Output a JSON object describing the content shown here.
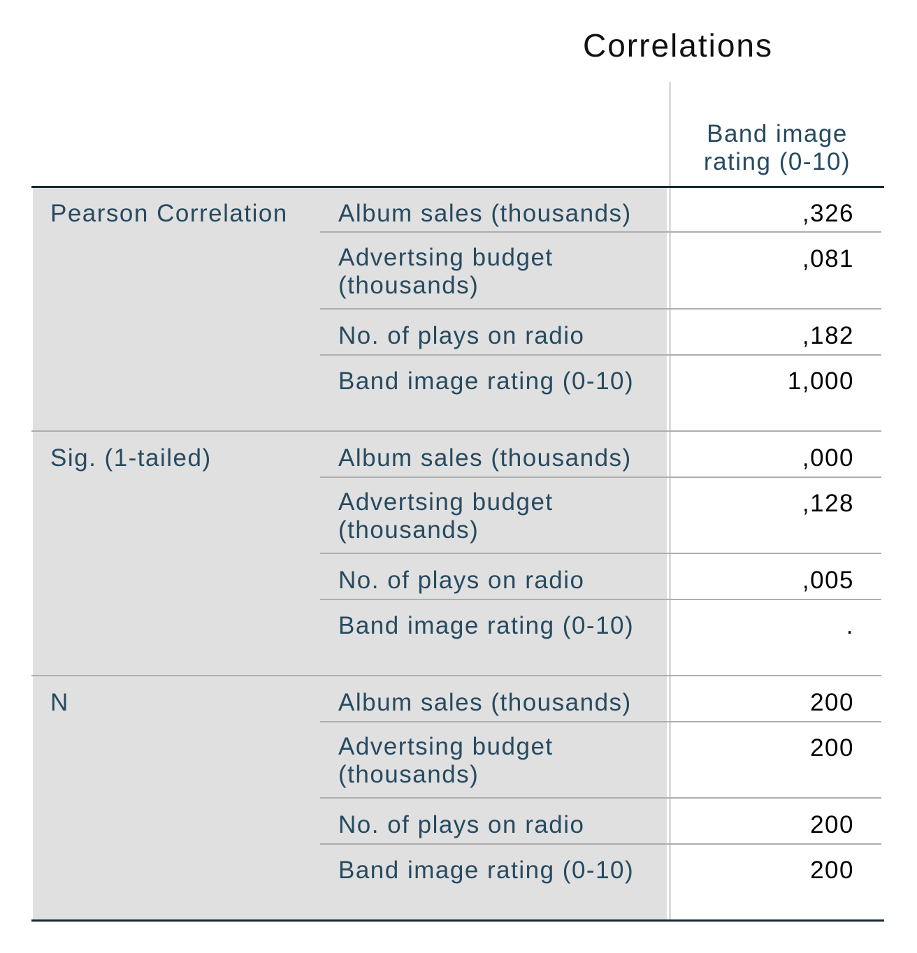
{
  "title": "Correlations",
  "column_header": "Band image rating (0-10)",
  "groups": [
    {
      "label": "Pearson Correlation",
      "rows": [
        {
          "label": "Album sales (thousands)",
          "value": ",326"
        },
        {
          "label": "Advertsing budget (thousands)",
          "value": ",081"
        },
        {
          "label": "No. of plays on radio",
          "value": ",182"
        },
        {
          "label": "Band image rating (0-10)",
          "value": "1,000"
        }
      ]
    },
    {
      "label": "Sig. (1-tailed)",
      "rows": [
        {
          "label": "Album sales (thousands)",
          "value": ",000"
        },
        {
          "label": "Advertsing budget (thousands)",
          "value": ",128"
        },
        {
          "label": "No. of plays on radio",
          "value": ",005"
        },
        {
          "label": "Band image rating (0-10)",
          "value": "."
        }
      ]
    },
    {
      "label": "N",
      "rows": [
        {
          "label": "Album sales (thousands)",
          "value": "200"
        },
        {
          "label": "Advertsing budget (thousands)",
          "value": "200"
        },
        {
          "label": "No. of plays on radio",
          "value": "200"
        },
        {
          "label": "Band image rating (0-10)",
          "value": "200"
        }
      ]
    }
  ]
}
